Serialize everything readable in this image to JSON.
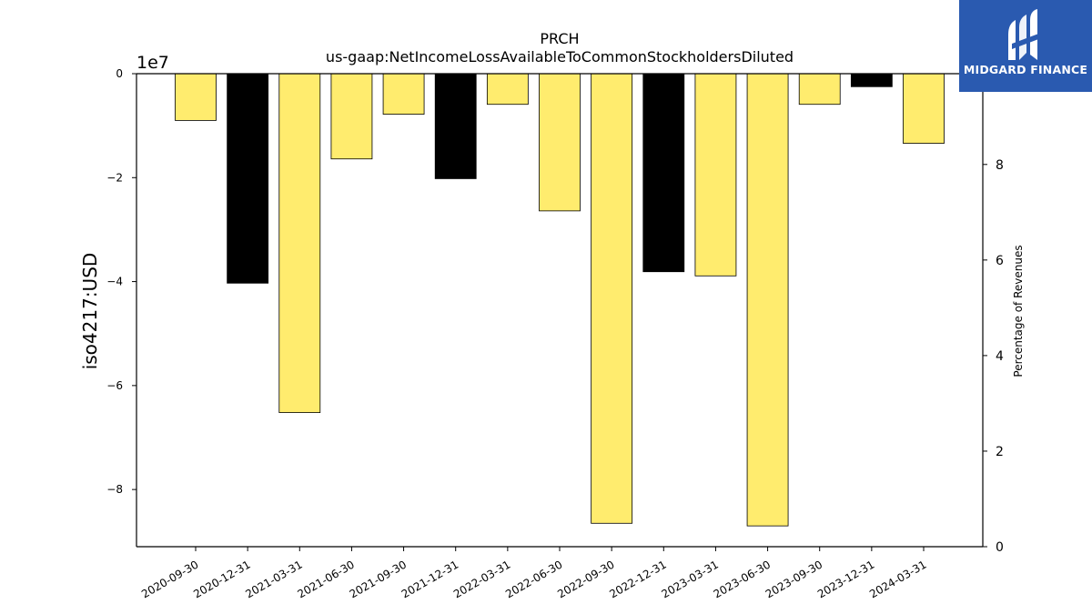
{
  "chart_data": {
    "type": "bar",
    "title": "PRCH",
    "subtitle": "us-gaap:NetIncomeLossAvailableToCommonStockholdersDiluted",
    "ylabel": "iso4217:USD",
    "y_offset_text": "1e7",
    "y2label": "Percentage of Revenues",
    "categories": [
      "2020-09-30",
      "2020-12-31",
      "2021-03-31",
      "2021-06-30",
      "2021-09-30",
      "2021-12-31",
      "2022-03-31",
      "2022-06-30",
      "2022-09-30",
      "2022-12-31",
      "2023-03-31",
      "2023-06-30",
      "2023-09-30",
      "2023-12-31",
      "2024-03-31"
    ],
    "values": [
      -9000000,
      -40300000,
      -65200000,
      -16400000,
      -7800000,
      -20200000,
      -5900000,
      -26400000,
      -86500000,
      -38100000,
      -38900000,
      -87000000,
      -5900000,
      -2500000,
      -13400000
    ],
    "bar_colors": [
      "#ffec6e",
      "#000000",
      "#ffec6e",
      "#ffec6e",
      "#ffec6e",
      "#000000",
      "#ffec6e",
      "#ffec6e",
      "#ffec6e",
      "#000000",
      "#ffec6e",
      "#ffec6e",
      "#ffec6e",
      "#000000",
      "#ffec6e"
    ],
    "ylim": [
      -91000000,
      0
    ],
    "yticks": [
      0,
      -20000000,
      -40000000,
      -60000000,
      -80000000
    ],
    "ytick_labels": [
      "0",
      "−2",
      "−4",
      "−6",
      "−8"
    ],
    "y2lim": [
      0,
      9.9
    ],
    "y2ticks": [
      0,
      2,
      4,
      6,
      8
    ],
    "y2tick_labels": [
      "0",
      "2",
      "4",
      "6",
      "8"
    ],
    "grid": false
  },
  "logo": {
    "text": "MIDGARD FINANCE",
    "color": "#2a5ab0"
  }
}
